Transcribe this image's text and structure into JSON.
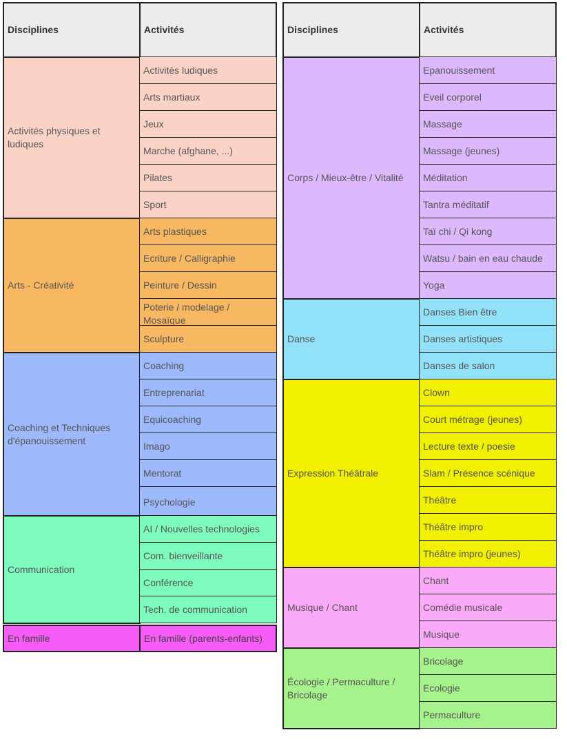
{
  "left": {
    "headers": {
      "disciplines": "Disciplines",
      "activities": "Activités"
    },
    "groups": [
      {
        "discipline": "Activités physiques et ludiques",
        "color": "#fad2c6",
        "activities": [
          "Activités ludiques",
          "Arts martiaux",
          "Jeux",
          "Marche (afghane, ...)",
          "Pilates",
          "Sport"
        ]
      },
      {
        "discipline": "Arts - Créativité",
        "color": "#f8b862",
        "activities": [
          "Arts plastiques",
          "Ecriture / Calligraphie",
          "Peinture / Dessin",
          "Poterie / modelage / Mosaïque",
          "Sculpture"
        ]
      },
      {
        "discipline": "Coaching et Techniques d'épanouissement",
        "color": "#9db8fb",
        "activities": [
          "Coaching",
          "Entreprenariat",
          "Equicoaching",
          "Imago",
          "Mentorat",
          "Psychologie"
        ]
      },
      {
        "discipline": "Communication",
        "color": "#7dfabc",
        "activities": [
          "AI / Nouvelles technologies",
          "Com. bienveillante",
          "Conférence",
          "Tech. de communication"
        ]
      },
      {
        "discipline": "En famille",
        "color": "#f85cf8",
        "activities": [
          "En famille (parents-enfants)"
        ]
      }
    ]
  },
  "right": {
    "headers": {
      "disciplines": "Disciplines",
      "activities": "Activités"
    },
    "groups": [
      {
        "discipline": "Corps / Mieux-être / Vitalité",
        "color": "#ddb8fc",
        "activities": [
          "Epanouissement",
          "Eveil corporel",
          "Massage",
          "Massage (jeunes)",
          "Méditation",
          "Tantra méditatif",
          "Taï chi / Qi kong",
          "Watsu / bain en eau chaude",
          "Yoga"
        ]
      },
      {
        "discipline": "Danse",
        "color": "#91e1f9",
        "activities": [
          "Danses Bien être",
          "Danses artistiques",
          "Danses de salon"
        ]
      },
      {
        "discipline": "Expression Théâtrale",
        "color": "#f0f000",
        "activities": [
          "Clown",
          "Court métrage (jeunes)",
          "Lecture texte / poesie",
          "Slam / Présence scénique",
          "Théâtre",
          "Théâtre impro",
          "Théâtre impro (jeunes)"
        ]
      },
      {
        "discipline": "Musique / Chant",
        "color": "#fba9f9",
        "activities": [
          "Chant",
          "Comédie musicale",
          "Musique"
        ]
      },
      {
        "discipline": "Écologie / Permaculture / Bricolage",
        "color": "#a6f28c",
        "activities": [
          "Bricolage",
          "Ecologie",
          "Permaculture"
        ]
      }
    ]
  }
}
